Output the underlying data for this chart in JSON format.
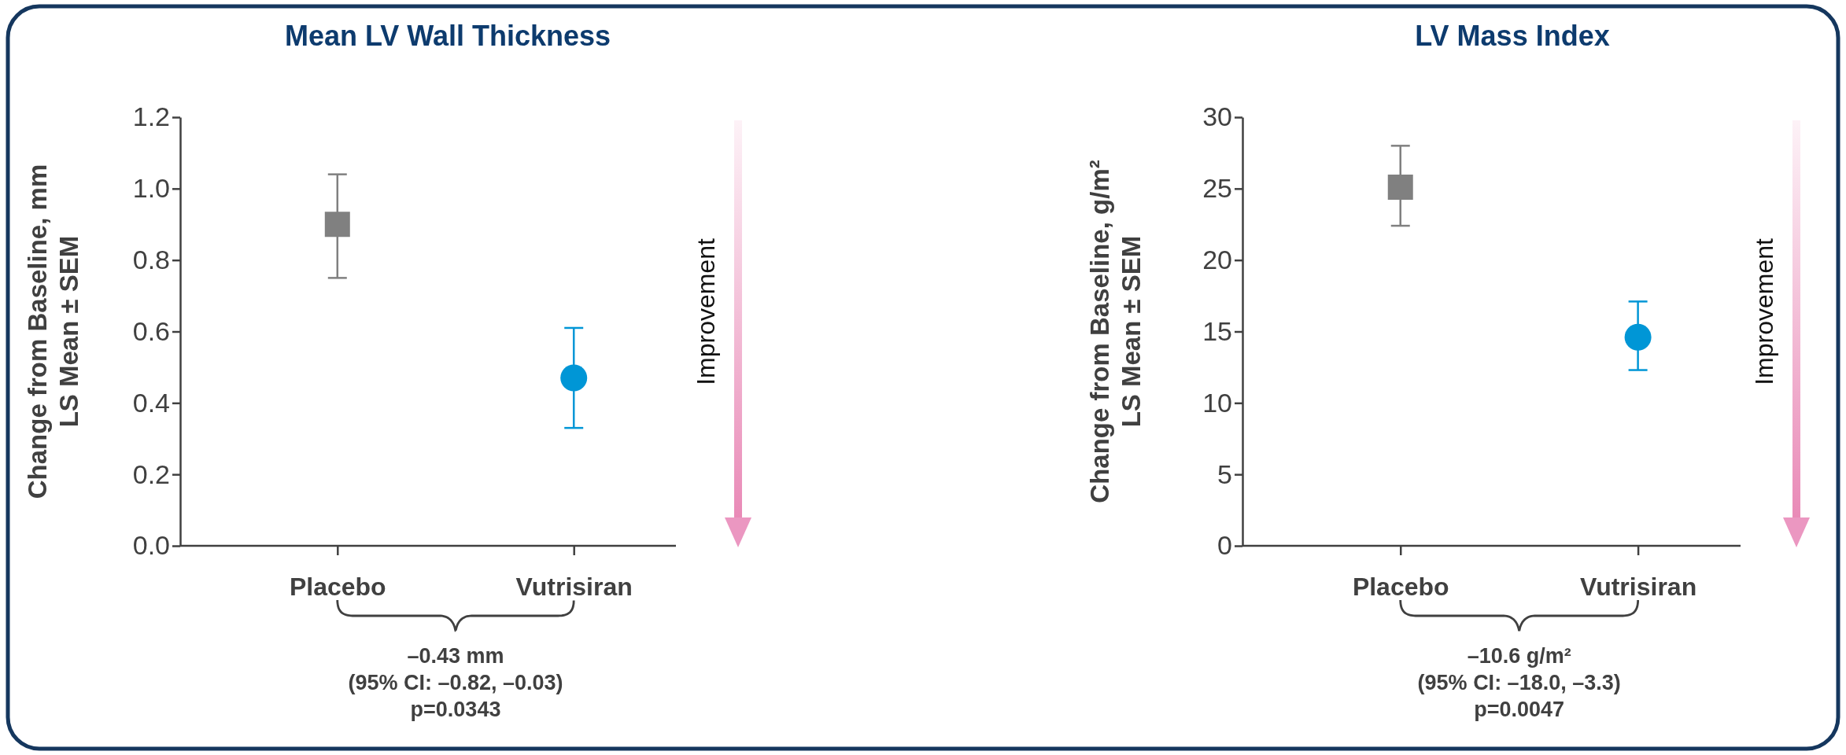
{
  "chart_data": [
    {
      "type": "scatter",
      "title": "Mean LV Wall Thickness",
      "ylabel": "Change from Baseline, mm\nLS Mean ± SEM",
      "categories": [
        "Placebo",
        "Vutrisiran"
      ],
      "series": [
        {
          "color": "#808080",
          "marker": "square",
          "values": [
            0.9,
            null
          ],
          "errors": [
            [
              0.75,
              1.04
            ],
            null
          ]
        },
        {
          "color": "#0096d6",
          "marker": "circle",
          "values": [
            null,
            0.47
          ],
          "errors": [
            null,
            [
              0.33,
              0.61
            ]
          ]
        }
      ],
      "ylim": [
        0,
        1.2
      ],
      "yticks": [
        {
          "value": 0,
          "label": "0.0"
        },
        {
          "value": 0.2,
          "label": "0.2"
        },
        {
          "value": 0.4,
          "label": "0.4"
        },
        {
          "value": 0.6,
          "label": "0.6"
        },
        {
          "value": 0.8,
          "label": "0.8"
        },
        {
          "value": 1,
          "label": "1.0"
        },
        {
          "value": 1.2,
          "label": "1.2"
        }
      ],
      "annotations": [
        "Improvement",
        "–0.43 mm",
        "(95% CI: –0.82, –0.03)",
        "p=0.0343"
      ]
    },
    {
      "type": "scatter",
      "title": "LV Mass Index",
      "ylabel": "Change from Baseline, g/m²\nLS Mean ± SEM",
      "categories": [
        "Placebo",
        "Vutrisiran"
      ],
      "series": [
        {
          "color": "#808080",
          "marker": "square",
          "values": [
            25.1,
            null
          ],
          "errors": [
            [
              22.4,
              28.0
            ],
            null
          ]
        },
        {
          "color": "#0096d6",
          "marker": "circle",
          "values": [
            null,
            14.6
          ],
          "errors": [
            null,
            [
              12.3,
              17.1
            ]
          ]
        }
      ],
      "ylim": [
        0,
        30
      ],
      "yticks": [
        0,
        5,
        10,
        15,
        20,
        25,
        30
      ],
      "annotations": [
        "Improvement",
        "–10.6 g/m²",
        "(95% CI: –18.0, –3.3)",
        "p=0.0047"
      ]
    }
  ]
}
